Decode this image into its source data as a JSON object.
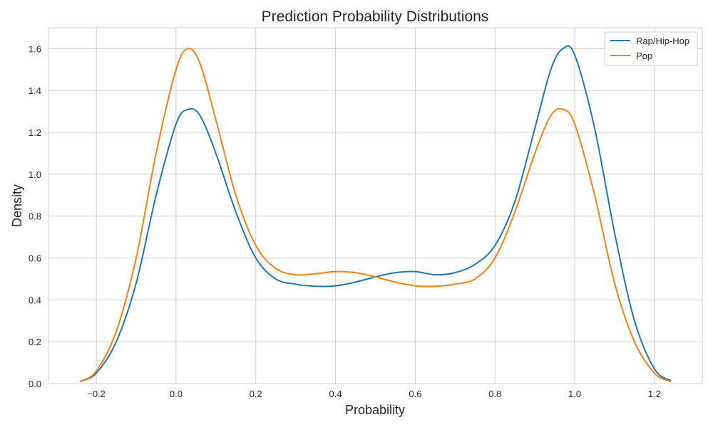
{
  "chart_data": {
    "type": "line",
    "title": "Prediction Probability Distributions",
    "xlabel": "Probability",
    "ylabel": "Density",
    "xlim": [
      -0.32,
      1.32
    ],
    "ylim": [
      0.0,
      1.7
    ],
    "xticks": [
      -0.2,
      0.0,
      0.2,
      0.4,
      0.6,
      0.8,
      1.0,
      1.2
    ],
    "xtick_labels": [
      "−0.2",
      "0.0",
      "0.2",
      "0.4",
      "0.6",
      "0.8",
      "1.0",
      "1.2"
    ],
    "yticks": [
      0.0,
      0.2,
      0.4,
      0.6,
      0.8,
      1.0,
      1.2,
      1.4,
      1.6
    ],
    "ytick_labels": [
      "0.0",
      "0.2",
      "0.4",
      "0.6",
      "0.8",
      "1.0",
      "1.2",
      "1.4",
      "1.6"
    ],
    "grid": true,
    "legend_position": "top-right",
    "x": [
      -0.24,
      -0.2,
      -0.15,
      -0.1,
      -0.05,
      0.0,
      0.03,
      0.06,
      0.1,
      0.15,
      0.2,
      0.25,
      0.3,
      0.35,
      0.4,
      0.45,
      0.5,
      0.55,
      0.6,
      0.65,
      0.7,
      0.75,
      0.8,
      0.85,
      0.9,
      0.94,
      0.97,
      1.0,
      1.05,
      1.1,
      1.15,
      1.2,
      1.24
    ],
    "series": [
      {
        "name": "Rap/Hip-Hop",
        "color": "#1f77b4",
        "values": [
          0.01,
          0.05,
          0.2,
          0.48,
          0.9,
          1.24,
          1.31,
          1.28,
          1.1,
          0.82,
          0.6,
          0.5,
          0.475,
          0.465,
          0.467,
          0.485,
          0.51,
          0.53,
          0.535,
          0.52,
          0.53,
          0.57,
          0.66,
          0.87,
          1.22,
          1.5,
          1.6,
          1.57,
          1.22,
          0.72,
          0.3,
          0.07,
          0.015
        ]
      },
      {
        "name": "Pop",
        "color": "#ff7f0e",
        "values": [
          0.01,
          0.06,
          0.25,
          0.6,
          1.1,
          1.5,
          1.6,
          1.53,
          1.26,
          0.9,
          0.66,
          0.55,
          0.52,
          0.525,
          0.535,
          0.53,
          0.51,
          0.485,
          0.467,
          0.465,
          0.475,
          0.5,
          0.6,
          0.82,
          1.1,
          1.28,
          1.31,
          1.24,
          0.9,
          0.48,
          0.2,
          0.05,
          0.01
        ]
      }
    ]
  }
}
